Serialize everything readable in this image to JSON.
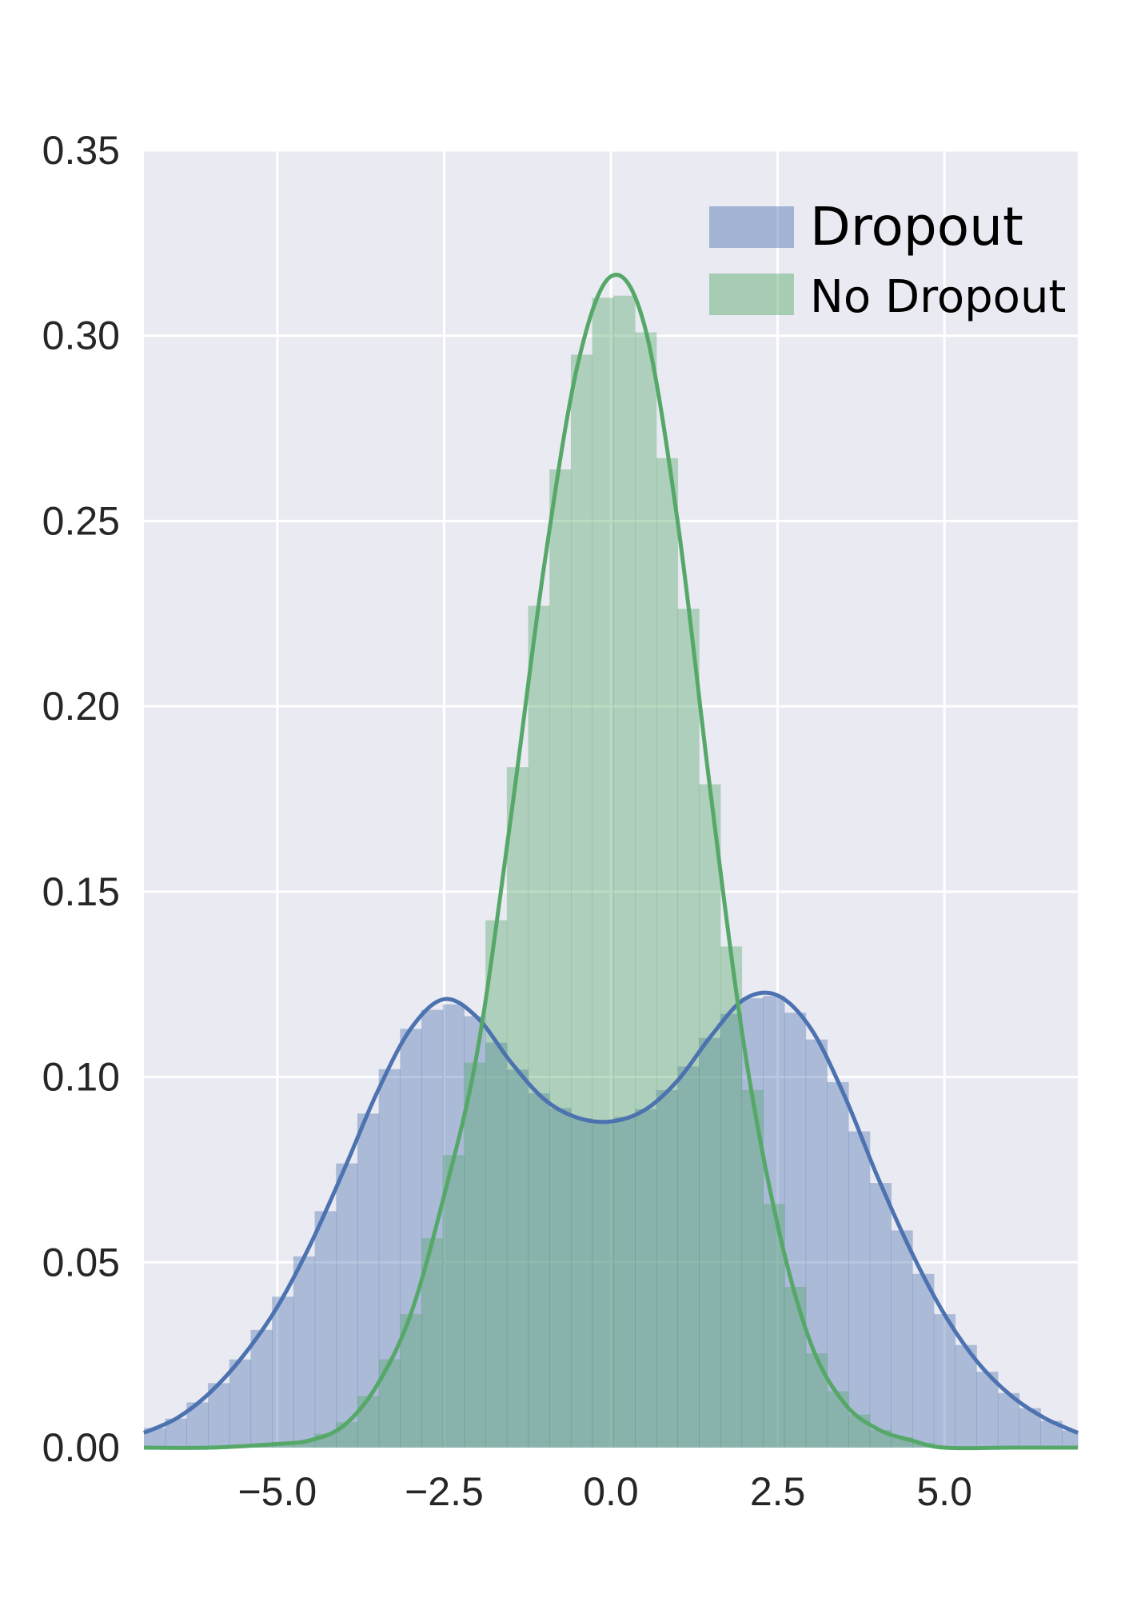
{
  "chart_data": {
    "type": "area",
    "title": "",
    "xlabel": "",
    "ylabel": "",
    "xlim": [
      -7,
      7
    ],
    "ylim": [
      0,
      0.35
    ],
    "grid": true,
    "legend_position": "top-right",
    "x_ticks": [
      -5.0,
      -2.5,
      0.0,
      2.5,
      5.0
    ],
    "x_tick_labels": [
      "−5.0",
      "−2.5",
      "0.0",
      "2.5",
      "5.0"
    ],
    "y_ticks": [
      0.0,
      0.05,
      0.1,
      0.15,
      0.2,
      0.25,
      0.3,
      0.35
    ],
    "y_tick_labels": [
      "0.00",
      "0.05",
      "0.10",
      "0.15",
      "0.20",
      "0.25",
      "0.30",
      "0.35"
    ],
    "background_color": "#eaeaf2",
    "series": [
      {
        "name": "Dropout",
        "line_color": "#4c72b0",
        "fill_color": "#4c72b0",
        "x": [
          -7.0,
          -6.5,
          -6.0,
          -5.5,
          -5.0,
          -4.5,
          -4.0,
          -3.5,
          -3.0,
          -2.5,
          -2.0,
          -1.5,
          -1.0,
          -0.5,
          0.0,
          0.5,
          1.0,
          1.5,
          2.0,
          2.5,
          3.0,
          3.5,
          4.0,
          4.5,
          5.0,
          5.5,
          6.0,
          6.5,
          7.0
        ],
        "y": [
          0.004,
          0.008,
          0.015,
          0.025,
          0.038,
          0.055,
          0.075,
          0.096,
          0.113,
          0.121,
          0.116,
          0.104,
          0.094,
          0.089,
          0.088,
          0.091,
          0.099,
          0.111,
          0.121,
          0.122,
          0.113,
          0.095,
          0.073,
          0.053,
          0.036,
          0.023,
          0.014,
          0.008,
          0.004
        ]
      },
      {
        "name": "No Dropout",
        "line_color": "#55a868",
        "fill_color": "#55a868",
        "x": [
          -7.0,
          -6.0,
          -5.0,
          -4.5,
          -4.0,
          -3.5,
          -3.0,
          -2.5,
          -2.0,
          -1.5,
          -1.0,
          -0.5,
          0.0,
          0.5,
          1.0,
          1.5,
          2.0,
          2.5,
          3.0,
          3.5,
          4.0,
          4.5,
          5.0,
          6.0,
          7.0
        ],
        "y": [
          0.0,
          0.0,
          0.001,
          0.002,
          0.006,
          0.017,
          0.036,
          0.068,
          0.107,
          0.17,
          0.238,
          0.292,
          0.316,
          0.303,
          0.25,
          0.176,
          0.108,
          0.06,
          0.028,
          0.012,
          0.005,
          0.002,
          0.0,
          0.0,
          0.0
        ]
      }
    ]
  }
}
